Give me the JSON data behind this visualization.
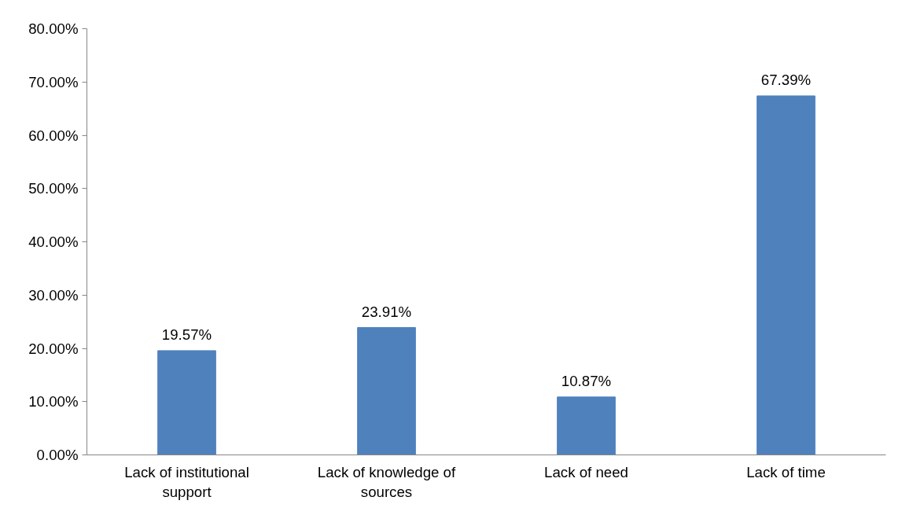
{
  "chart_data": {
    "type": "bar",
    "categories": [
      "Lack of institutional support",
      "Lack of knowledge of sources",
      "Lack of need",
      "Lack of time"
    ],
    "values": [
      19.57,
      23.91,
      10.87,
      67.39
    ],
    "value_labels": [
      "19.57%",
      "23.91%",
      "10.87%",
      "67.39%"
    ],
    "color": "#4f81bd",
    "ylim": [
      0,
      80
    ],
    "yticks": [
      {
        "value": 0,
        "label": "0.00%"
      },
      {
        "value": 10,
        "label": "10.00%"
      },
      {
        "value": 20,
        "label": "20.00%"
      },
      {
        "value": 30,
        "label": "30.00%"
      },
      {
        "value": 40,
        "label": "40.00%"
      },
      {
        "value": 50,
        "label": "50.00%"
      },
      {
        "value": 60,
        "label": "60.00%"
      },
      {
        "value": 70,
        "label": "70.00%"
      },
      {
        "value": 80,
        "label": "80.00%"
      }
    ],
    "grid": false
  }
}
